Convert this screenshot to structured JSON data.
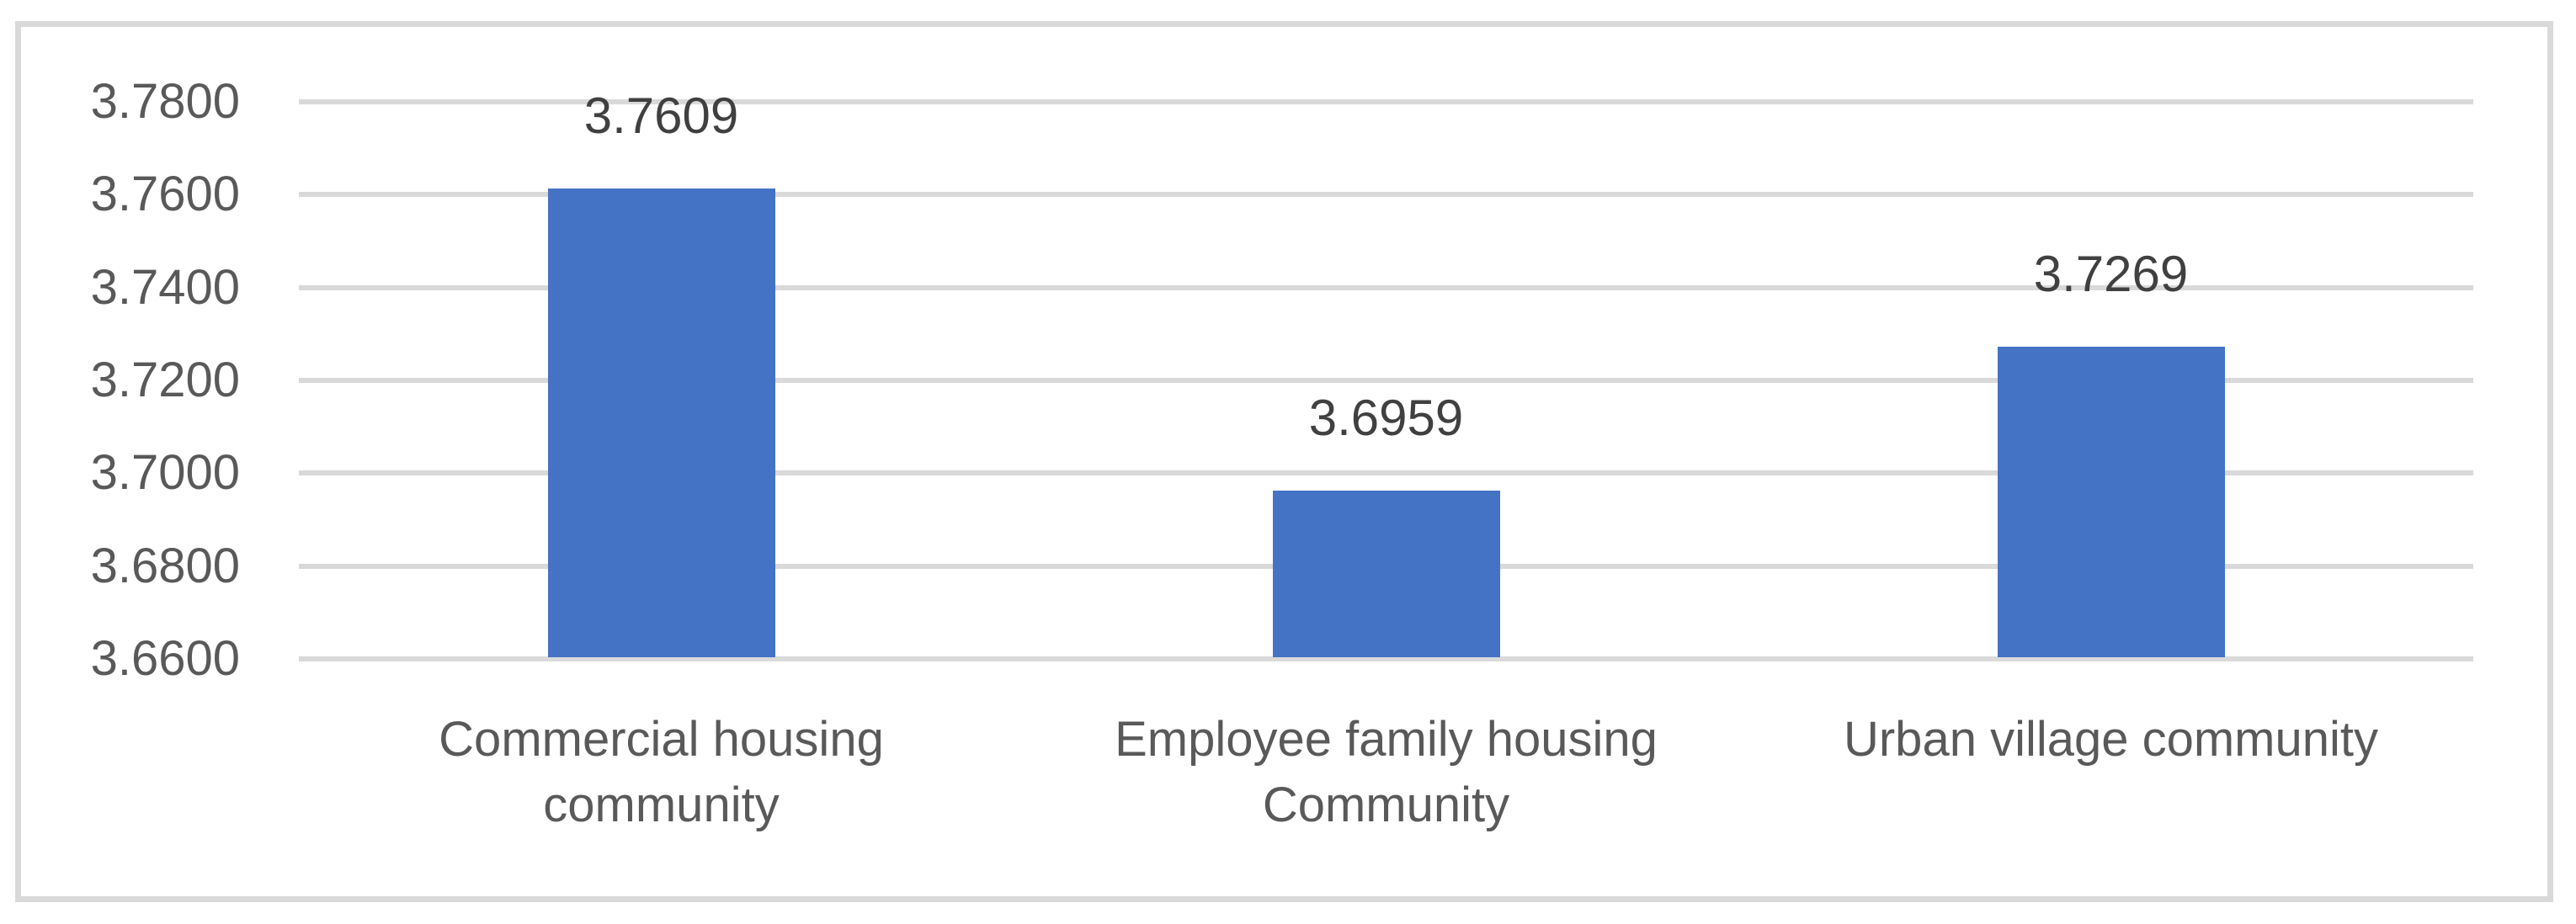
{
  "chart_data": {
    "type": "bar",
    "title": "",
    "xlabel": "",
    "ylabel": "",
    "categories": [
      "Commercial housing community",
      "Employee family housing Community",
      "Urban village community"
    ],
    "category_lines": [
      [
        "Commercial housing",
        "community"
      ],
      [
        "Employee family housing",
        "Community"
      ],
      [
        "Urban village community"
      ]
    ],
    "values": [
      3.7609,
      3.6959,
      3.7269
    ],
    "data_labels": [
      "3.7609",
      "3.6959",
      "3.7269"
    ],
    "y_ticks": [
      "3.7800",
      "3.7600",
      "3.7400",
      "3.7200",
      "3.7000",
      "3.6800",
      "3.6600"
    ],
    "ylim": [
      3.66,
      3.78
    ],
    "y_tick_step": 0.02,
    "grid": "horizontal",
    "legend_position": "none",
    "colors": {
      "bar": "#4472C4",
      "gridline": "#D9D9D9",
      "frame_border": "#D9D9D9",
      "axis_text": "#595959",
      "data_label_text": "#404040",
      "background": "#FFFFFF"
    }
  }
}
